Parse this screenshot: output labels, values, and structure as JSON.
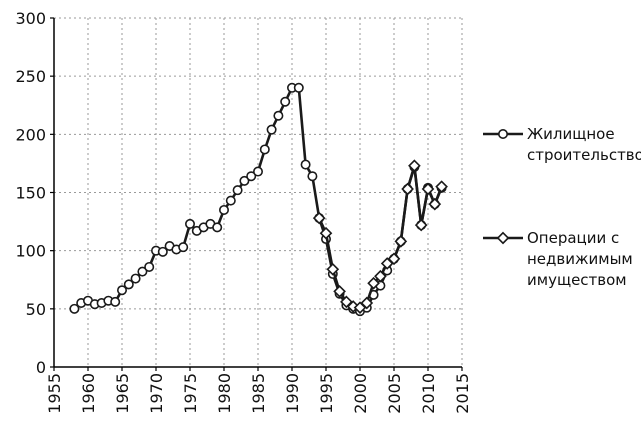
{
  "chart_data": {
    "type": "line",
    "title": "",
    "xlabel": "",
    "ylabel": "",
    "xlim": [
      1955,
      2015
    ],
    "ylim": [
      0,
      300
    ],
    "x_ticks": [
      "1955",
      "1960",
      "1965",
      "1970",
      "1975",
      "1980",
      "1985",
      "1990",
      "1995",
      "2000",
      "2005",
      "2010",
      "2015"
    ],
    "y_ticks": [
      "0",
      "50",
      "100",
      "150",
      "200",
      "250",
      "300"
    ],
    "grid": "dashed",
    "legend_position": "right",
    "series": [
      {
        "name": "Жилищное строительство",
        "legend_lines": [
          "Жилищное",
          "строительство"
        ],
        "marker": "circle",
        "points": [
          [
            1958,
            50
          ],
          [
            1959,
            55
          ],
          [
            1960,
            57
          ],
          [
            1961,
            54
          ],
          [
            1962,
            55
          ],
          [
            1963,
            57
          ],
          [
            1964,
            56
          ],
          [
            1965,
            66
          ],
          [
            1966,
            71
          ],
          [
            1967,
            76
          ],
          [
            1968,
            82
          ],
          [
            1969,
            86
          ],
          [
            1970,
            100
          ],
          [
            1971,
            99
          ],
          [
            1972,
            104
          ],
          [
            1973,
            101
          ],
          [
            1974,
            103
          ],
          [
            1975,
            123
          ],
          [
            1976,
            117
          ],
          [
            1977,
            120
          ],
          [
            1978,
            123
          ],
          [
            1979,
            120
          ],
          [
            1980,
            135
          ],
          [
            1981,
            143
          ],
          [
            1982,
            152
          ],
          [
            1983,
            160
          ],
          [
            1984,
            164
          ],
          [
            1985,
            168
          ],
          [
            1986,
            187
          ],
          [
            1987,
            204
          ],
          [
            1988,
            216
          ],
          [
            1989,
            228
          ],
          [
            1990,
            240
          ],
          [
            1991,
            240
          ],
          [
            1992,
            174
          ],
          [
            1993,
            164
          ],
          [
            1994,
            128
          ],
          [
            1995,
            110
          ],
          [
            1996,
            80
          ],
          [
            1997,
            63
          ],
          [
            1998,
            53
          ],
          [
            1999,
            50
          ],
          [
            2000,
            48
          ],
          [
            2001,
            51
          ],
          [
            2002,
            62
          ],
          [
            2003,
            70
          ],
          [
            2004,
            83
          ],
          [
            2005,
            93
          ],
          [
            2006,
            108
          ],
          [
            2007,
            153
          ],
          [
            2008,
            172
          ],
          [
            2009,
            122
          ],
          [
            2010,
            154
          ],
          [
            2011,
            140
          ],
          [
            2012,
            154
          ]
        ]
      },
      {
        "name": "Операции с недвижимым имуществом",
        "legend_lines": [
          "Операции с",
          "недвижимым",
          "имуществом"
        ],
        "marker": "diamond",
        "points": [
          [
            1994,
            128
          ],
          [
            1995,
            115
          ],
          [
            1996,
            84
          ],
          [
            1997,
            65
          ],
          [
            1998,
            56
          ],
          [
            1999,
            52
          ],
          [
            2000,
            51
          ],
          [
            2001,
            55
          ],
          [
            2002,
            72
          ],
          [
            2003,
            78
          ],
          [
            2004,
            89
          ],
          [
            2005,
            93
          ],
          [
            2006,
            108
          ],
          [
            2007,
            153
          ],
          [
            2008,
            173
          ],
          [
            2009,
            122
          ],
          [
            2010,
            153
          ],
          [
            2011,
            140
          ],
          [
            2012,
            155
          ]
        ]
      }
    ],
    "colors": {
      "line": "#1a1a1a",
      "marker_fill": "#ffffff",
      "grid": "#9a9a9a",
      "axis": "#000000"
    }
  }
}
